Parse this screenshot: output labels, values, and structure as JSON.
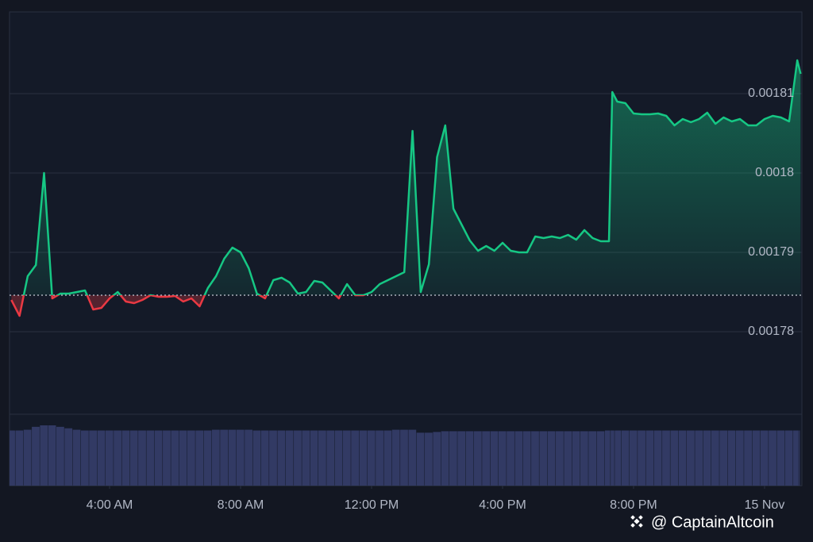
{
  "chart_data": {
    "type": "line",
    "x": [
      1.0,
      1.25,
      1.5,
      1.75,
      2.0,
      2.25,
      2.5,
      2.75,
      3.0,
      3.25,
      3.5,
      3.75,
      4.0,
      4.25,
      4.5,
      4.75,
      5.0,
      5.25,
      5.5,
      5.75,
      6.0,
      6.25,
      6.5,
      6.75,
      7.0,
      7.25,
      7.5,
      7.75,
      8.0,
      8.25,
      8.5,
      8.75,
      9.0,
      9.25,
      9.5,
      9.75,
      10.0,
      10.25,
      10.5,
      10.75,
      11.0,
      11.25,
      11.5,
      11.75,
      12.0,
      12.25,
      12.5,
      12.75,
      13.0,
      13.25,
      13.5,
      13.75,
      14.0,
      14.25,
      14.5,
      14.75,
      15.0,
      15.25,
      15.5,
      15.75,
      16.0,
      16.25,
      16.5,
      16.75,
      17.0,
      17.25,
      17.5,
      17.75,
      18.0,
      18.25,
      18.5,
      18.75,
      19.0,
      19.25,
      19.35,
      19.5,
      19.75,
      20.0,
      20.25,
      20.5,
      20.75,
      21.0,
      21.25,
      21.5,
      21.75,
      22.0,
      22.25,
      22.5,
      22.75,
      23.0,
      23.25,
      23.5,
      23.75,
      24.0,
      24.25,
      24.5,
      24.75,
      25.0,
      25.1
    ],
    "values": [
      0.001784,
      0.001782,
      0.001787,
      0.0017884,
      0.0018,
      0.0017842,
      0.0017848,
      0.0017848,
      0.001785,
      0.0017852,
      0.0017828,
      0.001783,
      0.0017842,
      0.001785,
      0.0017838,
      0.0017836,
      0.001784,
      0.0017846,
      0.0017844,
      0.0017844,
      0.0017845,
      0.0017838,
      0.0017842,
      0.0017832,
      0.0017855,
      0.001787,
      0.0017892,
      0.0017906,
      0.00179,
      0.001788,
      0.0017848,
      0.0017842,
      0.0017865,
      0.0017868,
      0.0017862,
      0.0017848,
      0.001785,
      0.0017864,
      0.0017862,
      0.0017852,
      0.0017842,
      0.001786,
      0.0017846,
      0.0017846,
      0.001785,
      0.001786,
      0.0017865,
      0.001787,
      0.0017875,
      0.0018053,
      0.001785,
      0.0017885,
      0.001802,
      0.001806,
      0.0017955,
      0.0017935,
      0.0017915,
      0.0017902,
      0.0017908,
      0.0017902,
      0.0017912,
      0.0017902,
      0.00179,
      0.00179,
      0.001792,
      0.0017918,
      0.001792,
      0.0017918,
      0.0017922,
      0.0017916,
      0.0017928,
      0.0017918,
      0.0017914,
      0.0017914,
      0.0018102,
      0.001809,
      0.0018088,
      0.0018075,
      0.0018074,
      0.0018074,
      0.0018075,
      0.0018072,
      0.001806,
      0.0018068,
      0.0018064,
      0.0018068,
      0.0018076,
      0.0018062,
      0.001807,
      0.0018065,
      0.0018068,
      0.001806,
      0.001806,
      0.0018068,
      0.0018072,
      0.001807,
      0.0018065,
      0.0018142,
      0.0018125
    ],
    "volume": [
      75,
      75,
      76,
      80,
      82,
      82,
      80,
      78,
      76,
      75,
      75,
      75,
      75,
      75,
      75,
      75,
      75,
      75,
      75,
      75,
      75,
      75,
      75,
      75,
      75,
      76,
      76,
      76,
      76,
      76,
      75,
      75,
      75,
      75,
      75,
      75,
      75,
      75,
      75,
      75,
      75,
      75,
      75,
      75,
      75,
      75,
      75,
      76,
      76,
      76,
      72,
      72,
      73,
      74,
      74,
      74,
      74,
      74,
      74,
      74,
      74,
      74,
      74,
      74,
      74,
      74,
      74,
      74,
      74,
      74,
      74,
      74,
      74,
      75,
      75,
      75,
      75,
      75,
      75,
      75,
      75,
      75,
      75,
      75,
      75,
      75,
      75,
      75,
      75,
      75,
      75,
      75,
      75,
      75,
      75,
      75,
      75,
      75,
      75
    ],
    "baseline": 0.0017846,
    "color": "#16c784",
    "down_color": "#ea3943",
    "volume_color": "#323a64",
    "xlim": [
      0.945,
      25.14
    ],
    "xticks": [
      {
        "value": 4,
        "label": "4:00 AM"
      },
      {
        "value": 8,
        "label": "8:00 AM"
      },
      {
        "value": 12,
        "label": "12:00 PM"
      },
      {
        "value": 16,
        "label": "4:00 PM"
      },
      {
        "value": 20,
        "label": "8:00 PM"
      },
      {
        "value": 24,
        "label": "15 Nov"
      }
    ],
    "ylim": [
      0.00177,
      0.00182
    ],
    "yticks": [
      0.00178,
      0.00179,
      0.0018,
      0.00181
    ],
    "grid": true,
    "watermark": "@ CaptainAltcoin"
  }
}
